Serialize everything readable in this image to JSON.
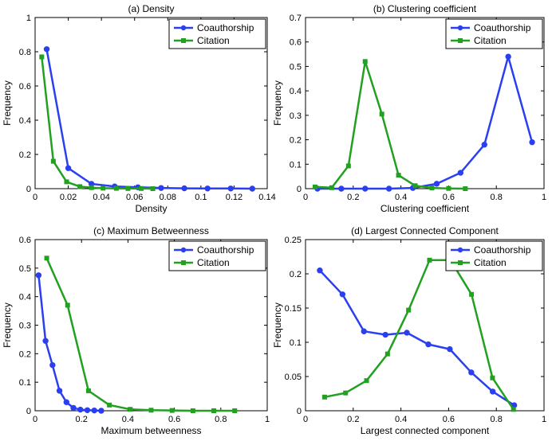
{
  "chart_data": [
    {
      "type": "line",
      "title": "(a) Density",
      "xlabel": "Density",
      "ylabel": "Frequency",
      "xlim": [
        0,
        0.14
      ],
      "ylim": [
        0,
        1
      ],
      "xticks": [
        0,
        0.02,
        0.04,
        0.06,
        0.08,
        0.1,
        0.12,
        0.14
      ],
      "xtick_labels": [
        "0",
        "0.02",
        "0.04",
        "0.06",
        "0.08",
        "0.1",
        "0.12",
        "0.14"
      ],
      "yticks": [
        0,
        0.2,
        0.4,
        0.6,
        0.8,
        1
      ],
      "ytick_labels": [
        "0",
        "0.2",
        "0.4",
        "0.6",
        "0.8",
        "1"
      ],
      "legend": "top-right",
      "series": [
        {
          "name": "Coauthorship",
          "color": "#2a3ff0",
          "marker": "circle",
          "x": [
            0.007,
            0.02,
            0.034,
            0.048,
            0.062,
            0.076,
            0.09,
            0.104,
            0.118,
            0.131
          ],
          "y": [
            0.815,
            0.12,
            0.028,
            0.013,
            0.008,
            0.004,
            0.002,
            0.001,
            0.001,
            0.0
          ]
        },
        {
          "name": "Citation",
          "color": "#22a020",
          "marker": "square",
          "x": [
            0.004,
            0.011,
            0.019,
            0.027,
            0.034,
            0.041,
            0.049,
            0.056,
            0.064,
            0.071
          ],
          "y": [
            0.77,
            0.16,
            0.04,
            0.012,
            0.006,
            0.003,
            0.002,
            0.001,
            0.001,
            0.0
          ]
        }
      ]
    },
    {
      "type": "line",
      "title": "(b) Clustering coefficient",
      "xlabel": "Clustering coefficient",
      "ylabel": "Frequency",
      "xlim": [
        0,
        1
      ],
      "ylim": [
        0,
        0.7
      ],
      "xticks": [
        0,
        0.2,
        0.4,
        0.6,
        0.8,
        1
      ],
      "xtick_labels": [
        "0",
        "0.2",
        "0.4",
        "0.6",
        "0.8",
        "1"
      ],
      "yticks": [
        0,
        0.1,
        0.2,
        0.3,
        0.4,
        0.5,
        0.6,
        0.7
      ],
      "ytick_labels": [
        "0",
        "0.1",
        "0.2",
        "0.3",
        "0.4",
        "0.5",
        "0.6",
        "0.7"
      ],
      "legend": "top-right",
      "series": [
        {
          "name": "Coauthorship",
          "color": "#2a3ff0",
          "marker": "circle",
          "x": [
            0.05,
            0.15,
            0.25,
            0.35,
            0.45,
            0.55,
            0.65,
            0.75,
            0.85,
            0.95
          ],
          "y": [
            0.0,
            0.0,
            0.0,
            0.0,
            0.003,
            0.02,
            0.065,
            0.18,
            0.54,
            0.19
          ]
        },
        {
          "name": "Citation",
          "color": "#22a020",
          "marker": "square",
          "x": [
            0.04,
            0.11,
            0.18,
            0.25,
            0.32,
            0.39,
            0.46,
            0.53,
            0.6,
            0.67
          ],
          "y": [
            0.007,
            0.004,
            0.093,
            0.52,
            0.305,
            0.055,
            0.012,
            0.003,
            0.001,
            0.0
          ]
        }
      ]
    },
    {
      "type": "line",
      "title": "(c) Maximum Betweenness",
      "xlabel": "Maximum betweenness",
      "ylabel": "Frequency",
      "xlim": [
        0,
        1
      ],
      "ylim": [
        0,
        0.6
      ],
      "xticks": [
        0,
        0.2,
        0.4,
        0.6,
        0.8,
        1
      ],
      "xtick_labels": [
        "0",
        "0.2",
        "0.4",
        "0.6",
        "0.8",
        "1"
      ],
      "yticks": [
        0,
        0.1,
        0.2,
        0.3,
        0.4,
        0.5,
        0.6
      ],
      "ytick_labels": [
        "0",
        "0.1",
        "0.2",
        "0.3",
        "0.4",
        "0.5",
        "0.6"
      ],
      "legend": "top-right",
      "series": [
        {
          "name": "Coauthorship",
          "color": "#2a3ff0",
          "marker": "circle",
          "x": [
            0.015,
            0.045,
            0.075,
            0.105,
            0.135,
            0.165,
            0.195,
            0.225,
            0.255,
            0.285
          ],
          "y": [
            0.475,
            0.245,
            0.16,
            0.07,
            0.03,
            0.01,
            0.004,
            0.002,
            0.001,
            0.0
          ]
        },
        {
          "name": "Citation",
          "color": "#22a020",
          "marker": "square",
          "x": [
            0.05,
            0.14,
            0.23,
            0.32,
            0.41,
            0.5,
            0.59,
            0.68,
            0.77,
            0.86
          ],
          "y": [
            0.535,
            0.37,
            0.07,
            0.02,
            0.005,
            0.002,
            0.001,
            0.0,
            0.0,
            0.0
          ]
        }
      ]
    },
    {
      "type": "line",
      "title": "(d) Largest Connected Component",
      "xlabel": "Largest connected component",
      "ylabel": "Frequency",
      "xlim": [
        0,
        1
      ],
      "ylim": [
        0,
        0.25
      ],
      "xticks": [
        0,
        0.2,
        0.4,
        0.6,
        0.8,
        1
      ],
      "xtick_labels": [
        "0",
        "0.2",
        "0.4",
        "0.6",
        "0.8",
        "1"
      ],
      "yticks": [
        0,
        0.05,
        0.1,
        0.15,
        0.2,
        0.25
      ],
      "ytick_labels": [
        "0",
        "0.05",
        "0.1",
        "0.15",
        "0.2",
        "0.25"
      ],
      "legend": "top-right",
      "series": [
        {
          "name": "Coauthorship",
          "color": "#2a3ff0",
          "marker": "circle",
          "x": [
            0.06,
            0.155,
            0.245,
            0.335,
            0.425,
            0.515,
            0.605,
            0.695,
            0.785,
            0.875
          ],
          "y": [
            0.205,
            0.17,
            0.116,
            0.111,
            0.114,
            0.097,
            0.09,
            0.056,
            0.028,
            0.008
          ]
        },
        {
          "name": "Citation",
          "color": "#22a020",
          "marker": "square",
          "x": [
            0.08,
            0.168,
            0.256,
            0.344,
            0.432,
            0.52,
            0.608,
            0.696,
            0.784,
            0.872
          ],
          "y": [
            0.02,
            0.026,
            0.044,
            0.083,
            0.147,
            0.22,
            0.22,
            0.17,
            0.048,
            0.002
          ]
        }
      ]
    }
  ]
}
